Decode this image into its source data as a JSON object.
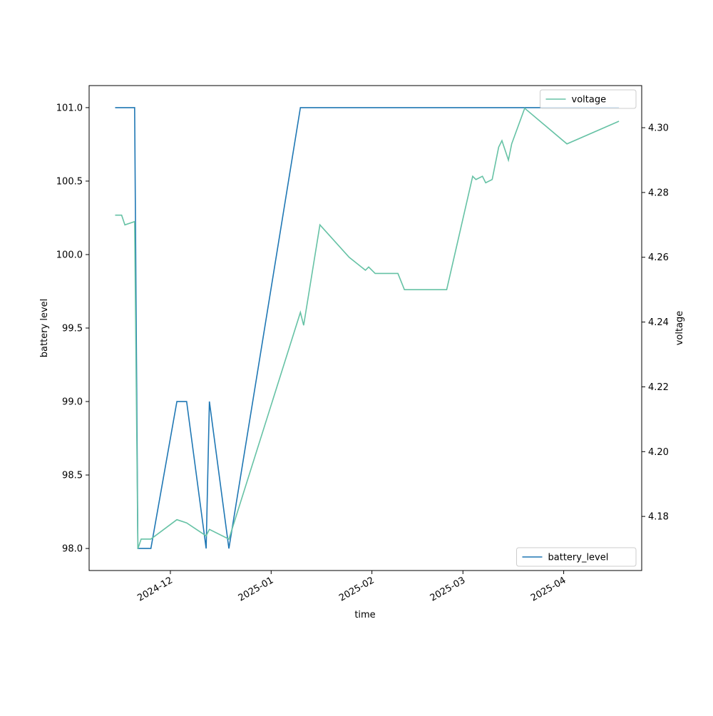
{
  "chart_data": {
    "type": "line",
    "xlabel": "time",
    "ylabel": "battery level",
    "y2label": "voltage",
    "xlim": [
      "2024-11-06",
      "2025-04-25"
    ],
    "xticks": [
      {
        "value": "2024-12-01",
        "label": "2024-12"
      },
      {
        "value": "2025-01-01",
        "label": "2025-01"
      },
      {
        "value": "2025-02-01",
        "label": "2025-02"
      },
      {
        "value": "2025-03-01",
        "label": "2025-03"
      },
      {
        "value": "2025-04-01",
        "label": "2025-04"
      }
    ],
    "ylim": [
      97.85,
      101.15
    ],
    "yticks": [
      {
        "value": 98,
        "label": "98.0"
      },
      98.5,
      {
        "value": 99,
        "label": "99.0"
      },
      99.5,
      {
        "value": 100,
        "label": "100.0"
      },
      100.5,
      {
        "value": 101,
        "label": "101.0"
      }
    ],
    "y2lim": [
      4.1633,
      4.313
    ],
    "y2ticks": [
      4.18,
      {
        "value": 4.2,
        "label": "4.20"
      },
      4.22,
      4.24,
      4.26,
      4.28,
      {
        "value": 4.3,
        "label": "4.30"
      }
    ],
    "series": [
      {
        "name": "battery_level",
        "color": "#1f77b4",
        "legend": "lower right",
        "x": [
          "2024-11-14",
          "2024-11-20",
          "2024-11-21",
          "2024-11-25",
          "2024-12-03",
          "2024-12-06",
          "2024-12-12",
          "2024-12-13",
          "2024-12-19",
          "2025-01-10",
          "2025-04-18"
        ],
        "values": [
          101,
          101,
          98,
          98,
          99,
          99,
          98,
          99,
          98,
          101,
          101
        ]
      },
      {
        "name": "voltage",
        "color": "#66c2a5",
        "axis": "y2",
        "legend": "upper right",
        "x": [
          "2024-11-14",
          "2024-11-16",
          "2024-11-17",
          "2024-11-20",
          "2024-11-21",
          "2024-11-22",
          "2024-11-25",
          "2024-12-03",
          "2024-12-06",
          "2024-12-12",
          "2024-12-13",
          "2024-12-19",
          "2025-01-10",
          "2025-01-11",
          "2025-01-16",
          "2025-01-25",
          "2025-01-30",
          "2025-01-31",
          "2025-02-02",
          "2025-02-09",
          "2025-02-11",
          "2025-02-24",
          "2025-03-04",
          "2025-03-05",
          "2025-03-07",
          "2025-03-08",
          "2025-03-10",
          "2025-03-12",
          "2025-03-13",
          "2025-03-15",
          "2025-03-16",
          "2025-03-20",
          "2025-04-02",
          "2025-04-18"
        ],
        "values": [
          4.273,
          4.273,
          4.27,
          4.271,
          4.17,
          4.173,
          4.173,
          4.179,
          4.178,
          4.174,
          4.176,
          4.173,
          4.243,
          4.239,
          4.27,
          4.26,
          4.256,
          4.257,
          4.255,
          4.255,
          4.25,
          4.25,
          4.285,
          4.284,
          4.285,
          4.283,
          4.284,
          4.294,
          4.296,
          4.29,
          4.295,
          4.306,
          4.295,
          4.302
        ]
      }
    ]
  }
}
